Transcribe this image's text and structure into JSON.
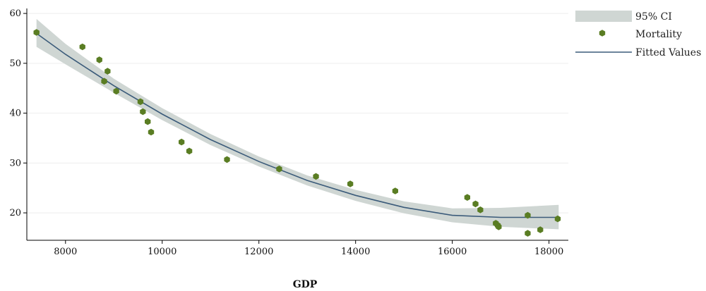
{
  "chart_data": {
    "type": "scatter",
    "title": "",
    "xlabel": "GDP",
    "ylabel": "",
    "xlim": [
      7200,
      18400
    ],
    "ylim": [
      14.5,
      61
    ],
    "x_ticks": [
      8000,
      10000,
      12000,
      14000,
      16000,
      18000
    ],
    "y_ticks": [
      20,
      30,
      40,
      50,
      60
    ],
    "grid": "horizontal",
    "legend_position": "top-right",
    "legend": [
      {
        "label": "95% CI",
        "kind": "band"
      },
      {
        "label": "Mortality",
        "kind": "marker"
      },
      {
        "label": "Fitted Values",
        "kind": "line"
      }
    ],
    "colors": {
      "points": "#5a7d23",
      "fit_line": "#3b5b7a",
      "ci_band": "#cfd6d3",
      "grid": "#eeeeee",
      "axis": "#000000"
    },
    "series": [
      {
        "name": "Mortality",
        "type": "scatter",
        "points": [
          [
            7400,
            56.2
          ],
          [
            8350,
            53.3
          ],
          [
            8700,
            50.7
          ],
          [
            8800,
            46.4
          ],
          [
            8870,
            48.4
          ],
          [
            9050,
            44.4
          ],
          [
            9550,
            42.3
          ],
          [
            9600,
            40.3
          ],
          [
            9700,
            38.3
          ],
          [
            9770,
            36.2
          ],
          [
            10400,
            34.2
          ],
          [
            10560,
            32.4
          ],
          [
            11340,
            30.7
          ],
          [
            12420,
            28.8
          ],
          [
            13180,
            27.3
          ],
          [
            13890,
            25.8
          ],
          [
            14820,
            24.4
          ],
          [
            16310,
            23.1
          ],
          [
            16480,
            21.8
          ],
          [
            16580,
            20.6
          ],
          [
            16900,
            17.9
          ],
          [
            16940,
            17.5
          ],
          [
            16960,
            17.2
          ],
          [
            17560,
            19.5
          ],
          [
            17560,
            15.9
          ],
          [
            17820,
            16.6
          ],
          [
            18180,
            18.8
          ]
        ]
      },
      {
        "name": "Fitted Values",
        "type": "line",
        "x": [
          7400,
          8000,
          9000,
          10000,
          11000,
          12000,
          13000,
          14000,
          15000,
          16000,
          17000,
          18200
        ],
        "y": [
          56.0,
          51.8,
          45.5,
          39.8,
          34.7,
          30.3,
          26.5,
          23.5,
          21.1,
          19.5,
          19.1,
          19.1
        ]
      },
      {
        "name": "95% CI",
        "type": "band",
        "x": [
          7400,
          8000,
          9000,
          10000,
          11000,
          12000,
          13000,
          14000,
          15000,
          16000,
          17000,
          18200
        ],
        "lower": [
          53.3,
          49.8,
          44.1,
          38.6,
          33.6,
          29.3,
          25.5,
          22.4,
          19.9,
          18.1,
          17.2,
          16.7
        ],
        "upper": [
          58.9,
          53.9,
          46.9,
          41.0,
          35.8,
          31.3,
          27.5,
          24.6,
          22.3,
          20.9,
          21.0,
          21.6
        ]
      }
    ]
  }
}
